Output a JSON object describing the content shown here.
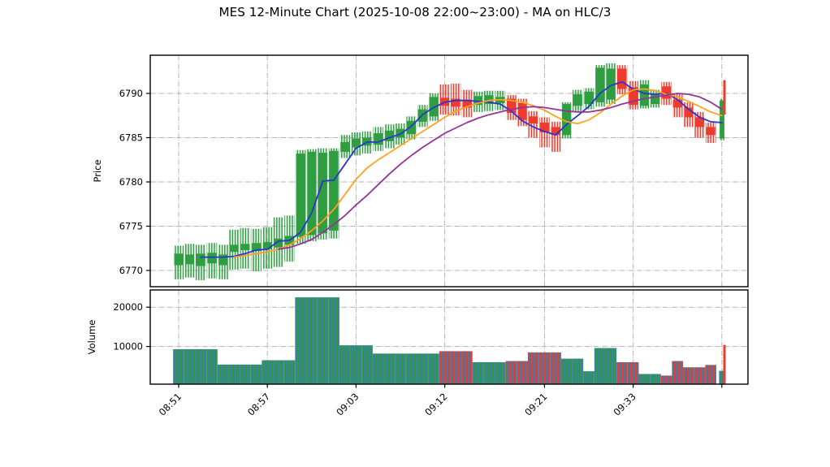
{
  "title": "MES 12-Minute Chart (2025-10-08 22:00~23:00) - MA on HLC/3",
  "price_axis": {
    "label": "Price",
    "ticks": [
      "6790",
      "6785",
      "6780",
      "6775",
      "6770"
    ],
    "tick_values": [
      6790,
      6785,
      6780,
      6775,
      6770
    ]
  },
  "volume_axis": {
    "label": "Volume",
    "ticks": [
      "20000",
      "10000"
    ],
    "tick_values": [
      20000,
      10000
    ]
  },
  "x_axis": {
    "tick_labels": [
      "08:51",
      "08:57",
      "09:03",
      "09:12",
      "09:21",
      "09:33",
      ""
    ],
    "tick_indices": [
      0,
      8,
      16,
      24,
      33,
      41,
      49
    ]
  },
  "colors": {
    "up": "#2f9e41",
    "down": "#ee3b2e",
    "ma_fast": "#2b35cc",
    "ma_mid": "#ffa11e",
    "ma_slow": "#96329b",
    "volume_bar": "#3a7ca8",
    "grid": "#b4b4b4",
    "background": "#ffffff",
    "text": "#000000"
  },
  "chart_data": {
    "type": "candlestick+volume",
    "title": "MES 12-Minute Chart (2025-10-08 22:00~23:00) - MA on HLC/3",
    "ylabel_price": "Price",
    "ylabel_volume": "Volume",
    "price_ylim": [
      6768.2,
      6794.3
    ],
    "volume_ylim": [
      0,
      24000
    ],
    "grid": true,
    "candles": [
      {
        "o": 6770.6,
        "h": 6772.8,
        "l": 6769.0,
        "c": 6771.9,
        "dir": "up",
        "v": 9300
      },
      {
        "o": 6770.7,
        "h": 6773.0,
        "l": 6769.2,
        "c": 6771.8,
        "dir": "up",
        "v": 9300
      },
      {
        "o": 6770.5,
        "h": 6772.9,
        "l": 6768.9,
        "c": 6771.9,
        "dir": "up",
        "v": 9300
      },
      {
        "o": 6770.8,
        "h": 6773.1,
        "l": 6769.1,
        "c": 6772.0,
        "dir": "up",
        "v": 9300
      },
      {
        "o": 6770.6,
        "h": 6772.9,
        "l": 6769.0,
        "c": 6771.8,
        "dir": "up",
        "v": 5400
      },
      {
        "o": 6772.1,
        "h": 6774.6,
        "l": 6770.1,
        "c": 6772.9,
        "dir": "up",
        "v": 5400
      },
      {
        "o": 6772.3,
        "h": 6774.8,
        "l": 6770.2,
        "c": 6773.0,
        "dir": "up",
        "v": 5400
      },
      {
        "o": 6772.2,
        "h": 6774.7,
        "l": 6769.9,
        "c": 6773.1,
        "dir": "up",
        "v": 5400
      },
      {
        "o": 6772.4,
        "h": 6774.9,
        "l": 6770.2,
        "c": 6773.2,
        "dir": "up",
        "v": 6500
      },
      {
        "o": 6772.6,
        "h": 6776.0,
        "l": 6770.4,
        "c": 6773.6,
        "dir": "up",
        "v": 6500
      },
      {
        "o": 6772.9,
        "h": 6776.2,
        "l": 6771.0,
        "c": 6773.9,
        "dir": "up",
        "v": 6500
      },
      {
        "o": 6773.8,
        "h": 6783.6,
        "l": 6773.0,
        "c": 6783.2,
        "dir": "up",
        "v": 22500
      },
      {
        "o": 6774.0,
        "h": 6783.7,
        "l": 6773.3,
        "c": 6783.4,
        "dir": "up",
        "v": 22500
      },
      {
        "o": 6774.2,
        "h": 6783.8,
        "l": 6773.5,
        "c": 6783.3,
        "dir": "up",
        "v": 22500
      },
      {
        "o": 6774.5,
        "h": 6783.8,
        "l": 6773.6,
        "c": 6783.5,
        "dir": "up",
        "v": 22500
      },
      {
        "o": 6783.4,
        "h": 6785.3,
        "l": 6782.7,
        "c": 6784.5,
        "dir": "up",
        "v": 10300
      },
      {
        "o": 6783.9,
        "h": 6785.6,
        "l": 6783.0,
        "c": 6784.9,
        "dir": "up",
        "v": 10300
      },
      {
        "o": 6784.1,
        "h": 6785.7,
        "l": 6783.2,
        "c": 6785.0,
        "dir": "up",
        "v": 10300
      },
      {
        "o": 6784.2,
        "h": 6786.2,
        "l": 6783.5,
        "c": 6785.5,
        "dir": "up",
        "v": 8200
      },
      {
        "o": 6784.6,
        "h": 6786.5,
        "l": 6783.8,
        "c": 6785.8,
        "dir": "up",
        "v": 8200
      },
      {
        "o": 6785.0,
        "h": 6786.6,
        "l": 6784.2,
        "c": 6786.0,
        "dir": "up",
        "v": 8200
      },
      {
        "o": 6785.4,
        "h": 6787.4,
        "l": 6784.8,
        "c": 6786.9,
        "dir": "up",
        "v": 8200
      },
      {
        "o": 6786.8,
        "h": 6788.7,
        "l": 6786.2,
        "c": 6788.2,
        "dir": "up",
        "v": 8200
      },
      {
        "o": 6787.4,
        "h": 6790.0,
        "l": 6786.9,
        "c": 6789.6,
        "dir": "up",
        "v": 8200
      },
      {
        "o": 6789.5,
        "h": 6791.0,
        "l": 6787.6,
        "c": 6788.6,
        "dir": "down",
        "v": 8800
      },
      {
        "o": 6789.4,
        "h": 6791.1,
        "l": 6787.5,
        "c": 6788.5,
        "dir": "down",
        "v": 8800
      },
      {
        "o": 6789.3,
        "h": 6790.4,
        "l": 6787.3,
        "c": 6788.4,
        "dir": "down",
        "v": 8800
      },
      {
        "o": 6788.7,
        "h": 6790.2,
        "l": 6787.9,
        "c": 6789.7,
        "dir": "up",
        "v": 6000
      },
      {
        "o": 6788.8,
        "h": 6790.3,
        "l": 6788.0,
        "c": 6789.8,
        "dir": "up",
        "v": 6000
      },
      {
        "o": 6788.9,
        "h": 6790.3,
        "l": 6788.1,
        "c": 6789.6,
        "dir": "up",
        "v": 6000
      },
      {
        "o": 6789.4,
        "h": 6789.8,
        "l": 6787.0,
        "c": 6787.8,
        "dir": "down",
        "v": 6300
      },
      {
        "o": 6788.9,
        "h": 6789.4,
        "l": 6786.3,
        "c": 6787.0,
        "dir": "down",
        "v": 6300
      },
      {
        "o": 6787.4,
        "h": 6788.0,
        "l": 6785.0,
        "c": 6786.6,
        "dir": "down",
        "v": 8500
      },
      {
        "o": 6786.7,
        "h": 6787.3,
        "l": 6783.9,
        "c": 6785.6,
        "dir": "down",
        "v": 8500
      },
      {
        "o": 6786.2,
        "h": 6786.8,
        "l": 6783.4,
        "c": 6785.3,
        "dir": "down",
        "v": 8500
      },
      {
        "o": 6785.3,
        "h": 6789.0,
        "l": 6784.9,
        "c": 6788.8,
        "dir": "up",
        "v": 6900
      },
      {
        "o": 6788.6,
        "h": 6790.4,
        "l": 6788.0,
        "c": 6789.9,
        "dir": "up",
        "v": 6900
      },
      {
        "o": 6788.8,
        "h": 6790.6,
        "l": 6788.2,
        "c": 6790.2,
        "dir": "up",
        "v": 3700
      },
      {
        "o": 6789.0,
        "h": 6793.2,
        "l": 6788.5,
        "c": 6792.9,
        "dir": "up",
        "v": 9600
      },
      {
        "o": 6789.3,
        "h": 6793.4,
        "l": 6788.8,
        "c": 6792.8,
        "dir": "up",
        "v": 9600
      },
      {
        "o": 6792.8,
        "h": 6793.2,
        "l": 6789.9,
        "c": 6790.5,
        "dir": "down",
        "v": 6000
      },
      {
        "o": 6790.7,
        "h": 6791.4,
        "l": 6788.2,
        "c": 6788.7,
        "dir": "down",
        "v": 6000
      },
      {
        "o": 6788.6,
        "h": 6791.5,
        "l": 6788.3,
        "c": 6791.0,
        "dir": "up",
        "v": 3000
      },
      {
        "o": 6788.8,
        "h": 6790.4,
        "l": 6788.4,
        "c": 6789.9,
        "dir": "up",
        "v": 3000
      },
      {
        "o": 6790.8,
        "h": 6791.3,
        "l": 6788.7,
        "c": 6789.4,
        "dir": "down",
        "v": 2600
      },
      {
        "o": 6789.3,
        "h": 6790.0,
        "l": 6787.3,
        "c": 6788.4,
        "dir": "down",
        "v": 6300
      },
      {
        "o": 6788.4,
        "h": 6789.0,
        "l": 6786.2,
        "c": 6787.3,
        "dir": "down",
        "v": 4700
      },
      {
        "o": 6787.3,
        "h": 6787.9,
        "l": 6785.0,
        "c": 6786.2,
        "dir": "down",
        "v": 4700
      },
      {
        "o": 6786.2,
        "h": 6786.7,
        "l": 6784.4,
        "c": 6785.3,
        "dir": "down",
        "v": 5300
      },
      {
        "o": 6784.9,
        "h": 6789.4,
        "l": 6784.7,
        "c": 6789.2,
        "dir": "up",
        "v": 3800,
        "w": 0.5
      }
    ],
    "forming_bar": {
      "o": 6789.0,
      "h": 6791.5,
      "l": 6787.6,
      "c": 6788.4,
      "dir": "down",
      "v": 10400
    },
    "ma_lines": [
      {
        "name": "MA fast",
        "color": "ma_fast",
        "values": [
          null,
          null,
          6771.5,
          6771.5,
          6771.5,
          6771.6,
          6771.9,
          6772.3,
          6772.4,
          6773.3,
          6773.4,
          6774.3,
          6776.5,
          6780.1,
          6780.2,
          6782.0,
          6783.8,
          6784.5,
          6784.5,
          6785.0,
          6785.4,
          6786.3,
          6787.6,
          6788.4,
          6789.0,
          6789.2,
          6789.2,
          6789.1,
          6789.0,
          6788.8,
          6788.0,
          6786.9,
          6786.2,
          6785.7,
          6785.3,
          6786.5,
          6787.5,
          6788.5,
          6790.0,
          6790.9,
          6791.3,
          6790.5,
          6790.0,
          6789.9,
          6790.0,
          6789.3,
          6788.2,
          6787.3,
          6786.8,
          6786.7
        ]
      },
      {
        "name": "MA mid",
        "color": "ma_mid",
        "values": [
          null,
          null,
          null,
          null,
          null,
          6771.5,
          6771.7,
          6771.9,
          6772.1,
          6772.4,
          6772.9,
          6773.6,
          6774.5,
          6775.6,
          6776.9,
          6778.6,
          6780.3,
          6781.6,
          6782.5,
          6783.3,
          6784.1,
          6784.9,
          6785.7,
          6786.5,
          6787.3,
          6788.0,
          6788.5,
          6788.9,
          6789.2,
          6789.3,
          6789.2,
          6789.0,
          6788.6,
          6788.1,
          6787.4,
          6786.8,
          6786.6,
          6787.0,
          6787.8,
          6788.8,
          6789.7,
          6790.4,
          6790.5,
          6790.3,
          6789.9,
          6789.6,
          6789.1,
          6788.5,
          6787.9,
          6787.5
        ]
      },
      {
        "name": "MA slow",
        "color": "ma_slow",
        "values": [
          null,
          null,
          null,
          null,
          null,
          null,
          null,
          null,
          null,
          6772.4,
          6772.6,
          6773.0,
          6773.5,
          6774.3,
          6775.2,
          6776.2,
          6777.4,
          6778.5,
          6779.7,
          6780.9,
          6782.0,
          6783.0,
          6783.9,
          6784.7,
          6785.5,
          6786.1,
          6786.7,
          6787.2,
          6787.6,
          6787.9,
          6788.2,
          6788.4,
          6788.5,
          6788.4,
          6788.2,
          6788.0,
          6787.9,
          6787.9,
          6788.1,
          6788.4,
          6788.8,
          6789.1,
          6789.4,
          6789.6,
          6789.8,
          6790.0,
          6789.9,
          6789.6,
          6789.0,
          6788.2
        ]
      }
    ]
  }
}
